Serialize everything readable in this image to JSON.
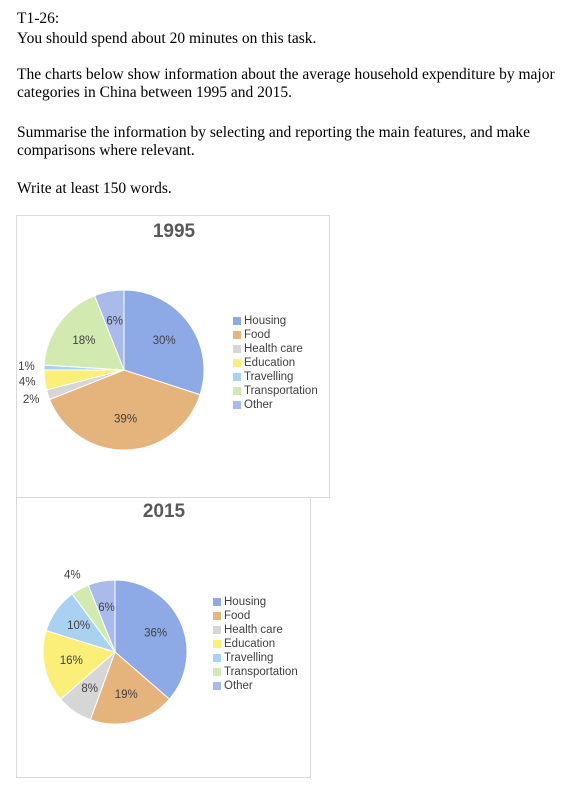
{
  "document": {
    "task_id": "T1-26:",
    "time_note": "You should spend about 20 minutes on this task.",
    "paragraphs": [
      "The charts below show information about the average household expenditure by major categories in China between 1995 and 2015.",
      "Summarise the information by selecting and reporting the main features, and make comparisons where relevant.",
      "Write at least 150 words."
    ]
  },
  "chart_data": [
    {
      "type": "pie",
      "title": "1995",
      "categories": [
        "Housing",
        "Food",
        "Health care",
        "Education",
        "Travelling",
        "Transportation",
        "Other"
      ],
      "values": [
        30,
        39,
        2,
        4,
        1,
        18,
        6
      ],
      "value_labels": [
        "30%",
        "39%",
        "2%",
        "4%",
        "1%",
        "18%",
        "6%"
      ],
      "colors": [
        "#8eaae6",
        "#e4b47c",
        "#d6d6d6",
        "#fbef7a",
        "#a9d2f2",
        "#d2eab0",
        "#a9bbea"
      ]
    },
    {
      "type": "pie",
      "title": "2015",
      "categories": [
        "Housing",
        "Food",
        "Health care",
        "Education",
        "Travelling",
        "Transportation",
        "Other"
      ],
      "values": [
        36,
        19,
        8,
        16,
        10,
        4,
        6
      ],
      "value_labels": [
        "36%",
        "19%",
        "8%",
        "16%",
        "10%",
        "4%",
        "6%"
      ],
      "colors": [
        "#8eaae6",
        "#e4b47c",
        "#d6d6d6",
        "#fbef7a",
        "#a9d2f2",
        "#d2eab0",
        "#a9bbea"
      ]
    }
  ]
}
